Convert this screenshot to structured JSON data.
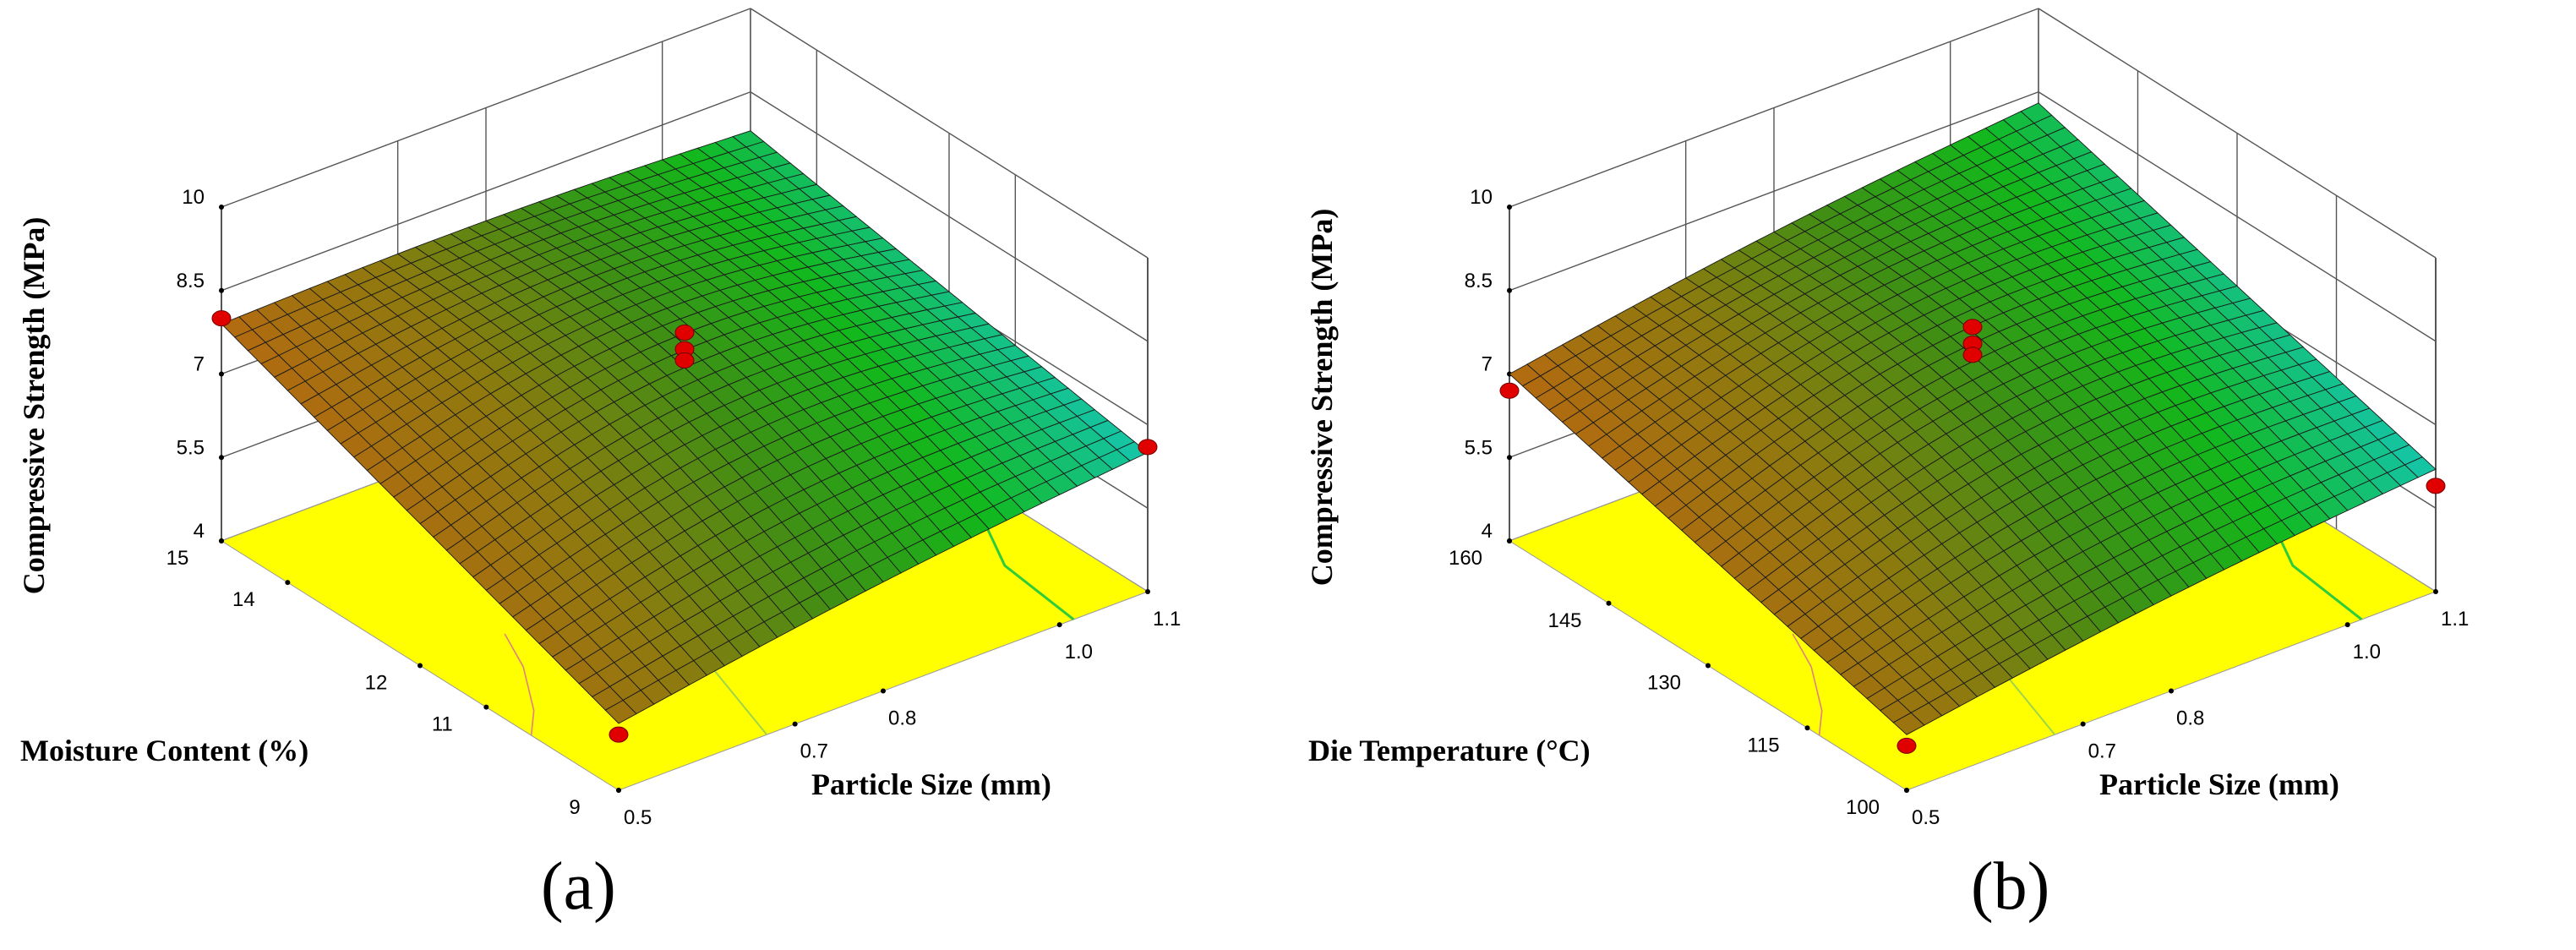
{
  "chart_data": [
    {
      "panel": "(a)",
      "type": "surface3d",
      "zlabel": "Compressive Strength (MPa)",
      "xlabel": "Particle Size (mm)",
      "ylabel": "Moisture Content (%)",
      "x_ticks": [
        "0.5",
        "0.7",
        "0.8",
        "1.0",
        "1.1"
      ],
      "y_ticks": [
        "9",
        "11",
        "12",
        "14",
        "15"
      ],
      "z_ticks": [
        "4",
        "5.5",
        "7",
        "8.5",
        "10"
      ],
      "xlim": [
        0.5,
        1.1
      ],
      "ylim": [
        9,
        15
      ],
      "zlim": [
        4,
        10
      ],
      "surface_corners": [
        {
          "x": 0.5,
          "y": 9,
          "z": 5.2
        },
        {
          "x": 0.5,
          "y": 15,
          "z": 7.9
        },
        {
          "x": 1.1,
          "y": 15,
          "z": 7.8
        },
        {
          "x": 1.1,
          "y": 9,
          "z": 6.5
        }
      ],
      "design_points": [
        {
          "x": 0.5,
          "y": 15,
          "z": 8.0
        },
        {
          "x": 0.8,
          "y": 12,
          "z": 8.2
        },
        {
          "x": 0.8,
          "y": 12,
          "z": 7.9
        },
        {
          "x": 0.8,
          "y": 12,
          "z": 7.7
        },
        {
          "x": 1.1,
          "y": 9,
          "z": 6.6
        },
        {
          "x": 0.5,
          "y": 9,
          "z": 5.0
        }
      ],
      "colormap": [
        "#b36a10",
        "#8f7a0f",
        "#3f8f14",
        "#12b81c",
        "#15c5ac"
      ]
    },
    {
      "panel": "(b)",
      "type": "surface3d",
      "zlabel": "Compressive Strength (MPa)",
      "xlabel": "Particle Size (mm)",
      "ylabel": "Die Temperature (°C)",
      "x_ticks": [
        "0.5",
        "0.7",
        "0.8",
        "1.0",
        "1.1"
      ],
      "y_ticks": [
        "100",
        "115",
        "130",
        "145",
        "160"
      ],
      "z_ticks": [
        "4",
        "5.5",
        "7",
        "8.5",
        "10"
      ],
      "xlim": [
        0.5,
        1.1
      ],
      "ylim": [
        100,
        160
      ],
      "zlim": [
        4,
        10
      ],
      "surface_corners": [
        {
          "x": 0.5,
          "y": 100,
          "z": 5.0
        },
        {
          "x": 0.5,
          "y": 160,
          "z": 7.0
        },
        {
          "x": 1.1,
          "y": 160,
          "z": 8.3
        },
        {
          "x": 1.1,
          "y": 100,
          "z": 6.2
        }
      ],
      "design_points": [
        {
          "x": 0.5,
          "y": 160,
          "z": 6.7
        },
        {
          "x": 0.8,
          "y": 130,
          "z": 8.3
        },
        {
          "x": 0.8,
          "y": 130,
          "z": 8.0
        },
        {
          "x": 0.8,
          "y": 130,
          "z": 7.8
        },
        {
          "x": 1.1,
          "y": 100,
          "z": 5.9
        },
        {
          "x": 0.5,
          "y": 100,
          "z": 4.8
        }
      ],
      "colormap": [
        "#b36a10",
        "#8f7a0f",
        "#3f8f14",
        "#12b81c",
        "#15c5ac"
      ]
    }
  ],
  "panel_labels": [
    "(a)",
    "(b)"
  ]
}
